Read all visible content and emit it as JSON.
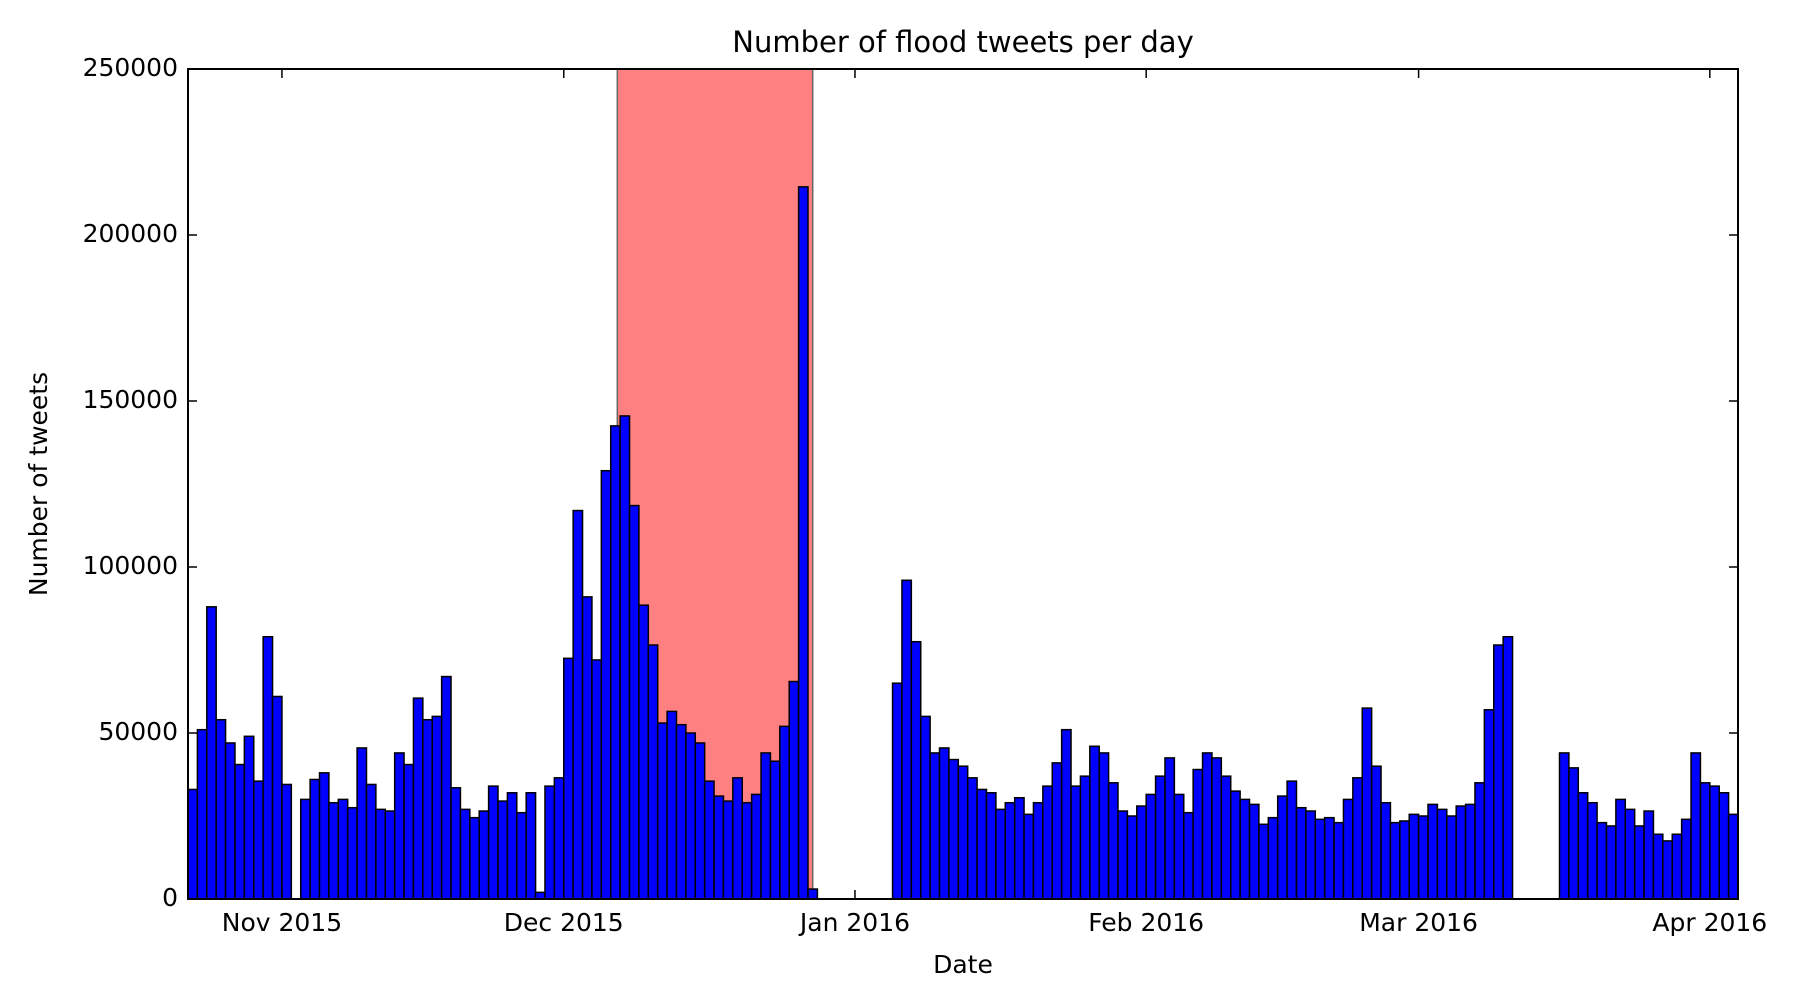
{
  "chart_data": {
    "type": "bar",
    "title": "Number of flood tweets per day",
    "xlabel": "Date",
    "ylabel": "Number of tweets",
    "color": "#0000ff",
    "edgecolor": "#000000",
    "span": [
      45.7,
      66.5
    ],
    "span_color": "#ff8080",
    "x": [
      0,
      1,
      2,
      3,
      4,
      5,
      6,
      7,
      8,
      9,
      10,
      11,
      12,
      13,
      14,
      15,
      16,
      17,
      18,
      19,
      20,
      21,
      22,
      23,
      24,
      25,
      26,
      27,
      28,
      29,
      30,
      31,
      32,
      33,
      34,
      35,
      36,
      37,
      38,
      39,
      40,
      41,
      42,
      43,
      44,
      45,
      46,
      47,
      48,
      49,
      50,
      51,
      52,
      53,
      54,
      55,
      56,
      57,
      58,
      59,
      60,
      61,
      62,
      63,
      64,
      65,
      66,
      67,
      68,
      69,
      70,
      71,
      72,
      73,
      74,
      75,
      76,
      77,
      78,
      79,
      80,
      81,
      82,
      83,
      84,
      85,
      86,
      87,
      88,
      89,
      90,
      91,
      92,
      93,
      94,
      95,
      96,
      97,
      98,
      99,
      100,
      101,
      102,
      103,
      104,
      105,
      106,
      107,
      108,
      109,
      110,
      111,
      112,
      113,
      114,
      115,
      116,
      117,
      118,
      119,
      120,
      121,
      122,
      123,
      124,
      125,
      126,
      127,
      128,
      129,
      130,
      131,
      132,
      133,
      134,
      135,
      136,
      137,
      138,
      139,
      140,
      141,
      142,
      143,
      144,
      145,
      146,
      147,
      148,
      149,
      150,
      151,
      152,
      153,
      154,
      155,
      156,
      157,
      158,
      159,
      160,
      161,
      162,
      163,
      164
    ],
    "values": [
      33000,
      51000,
      88000,
      54000,
      47000,
      40500,
      49000,
      35500,
      79000,
      61000,
      34500,
      0,
      30000,
      36000,
      38000,
      29000,
      30000,
      27500,
      45500,
      34500,
      27000,
      26500,
      44000,
      40500,
      60500,
      54000,
      55000,
      67000,
      33500,
      27000,
      24500,
      26500,
      34000,
      29500,
      32000,
      26000,
      32000,
      2000,
      34000,
      36500,
      72500,
      117000,
      91000,
      72000,
      129000,
      142500,
      145500,
      118500,
      88500,
      76500,
      53000,
      56500,
      52500,
      50000,
      47000,
      35500,
      31000,
      29500,
      36500,
      29000,
      31500,
      44000,
      41500,
      52000,
      65500,
      214500,
      3000,
      0,
      0,
      0,
      0,
      0,
      0,
      0,
      0,
      65000,
      96000,
      77500,
      55000,
      44000,
      45500,
      42000,
      40000,
      36500,
      33000,
      32000,
      27000,
      29000,
      30500,
      25500,
      29000,
      34000,
      41000,
      51000,
      34000,
      37000,
      46000,
      44000,
      35000,
      26500,
      25000,
      28000,
      31500,
      37000,
      42500,
      31500,
      26000,
      39000,
      44000,
      42500,
      37000,
      32500,
      30000,
      28500,
      22500,
      24500,
      31000,
      35500,
      27500,
      26500,
      24000,
      24500,
      23000,
      30000,
      36500,
      57500,
      40000,
      29000,
      23000,
      23500,
      25500,
      25000,
      28500,
      27000,
      25000,
      28000,
      28500,
      35000,
      57000,
      76500,
      79000,
      0,
      0,
      0,
      0,
      0,
      44000,
      39500,
      32000,
      29000,
      23000,
      22000,
      30000,
      27000,
      22000,
      26500,
      19500,
      17500,
      19500,
      24000,
      44000,
      35000,
      34000,
      32000,
      25500
    ],
    "xlim": [
      0,
      165
    ],
    "xticks": [
      {
        "value": 10,
        "label": "Nov 2015"
      },
      {
        "value": 40,
        "label": "Dec 2015"
      },
      {
        "value": 71,
        "label": "Jan 2016"
      },
      {
        "value": 102,
        "label": "Feb 2016"
      },
      {
        "value": 131,
        "label": "Mar 2016"
      },
      {
        "value": 162,
        "label": "Apr 2016"
      }
    ],
    "ylim": [
      0,
      250000
    ],
    "yticks": [
      0,
      50000,
      100000,
      150000,
      200000,
      250000
    ],
    "grid": false
  }
}
